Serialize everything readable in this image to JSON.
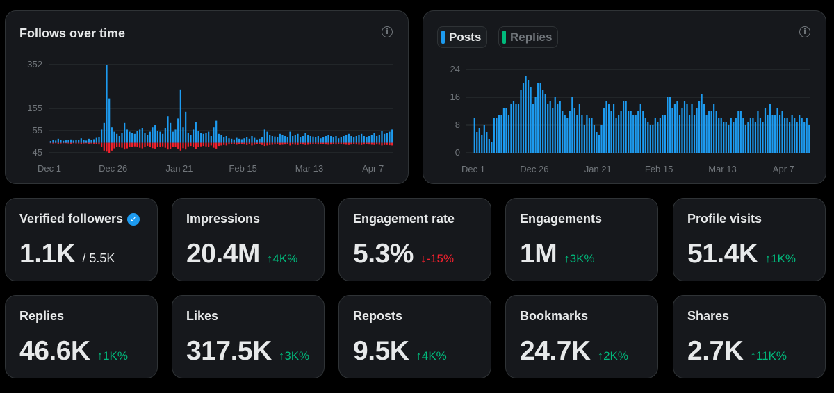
{
  "follows_chart": {
    "title": "Follows over time",
    "info_icon": "info-icon"
  },
  "posts_chart": {
    "tabs": [
      {
        "label": "Posts",
        "color": "#1d9bf0",
        "active": true
      },
      {
        "label": "Replies",
        "color": "#00ba7c",
        "active": false
      }
    ],
    "info_icon": "info-icon"
  },
  "chart_data": [
    {
      "type": "bar",
      "title": "Follows over time",
      "xlabel": "",
      "ylabel": "",
      "ytick_labels": [
        "352",
        "155",
        "55",
        "-45"
      ],
      "yticks": [
        352,
        155,
        55,
        -45
      ],
      "ylim": [
        -45,
        352
      ],
      "xtick_labels": [
        "Dec 1",
        "Dec 26",
        "Jan 21",
        "Feb 15",
        "Mar 13",
        "Apr 7"
      ],
      "xtick_index": [
        0,
        25,
        51,
        76,
        102,
        127
      ],
      "grid": true,
      "series": [
        {
          "color": "#1d9bf0",
          "values": [
            8,
            12,
            10,
            18,
            14,
            9,
            11,
            13,
            15,
            10,
            12,
            14,
            20,
            12,
            10,
            18,
            14,
            16,
            22,
            25,
            60,
            90,
            352,
            200,
            70,
            50,
            40,
            30,
            45,
            90,
            60,
            50,
            45,
            40,
            55,
            60,
            65,
            45,
            35,
            50,
            70,
            80,
            55,
            50,
            40,
            65,
            120,
            90,
            50,
            60,
            110,
            240,
            70,
            140,
            45,
            35,
            60,
            95,
            55,
            45,
            40,
            45,
            50,
            30,
            70,
            100,
            40,
            35,
            25,
            30,
            20,
            18,
            15,
            22,
            18,
            16,
            20,
            25,
            18,
            30,
            22,
            15,
            18,
            25,
            60,
            50,
            35,
            30,
            28,
            25,
            40,
            35,
            30,
            25,
            50,
            30,
            35,
            40,
            25,
            30,
            45,
            35,
            30,
            28,
            25,
            30,
            20,
            25,
            30,
            35,
            30,
            25,
            30,
            20,
            25,
            30,
            35,
            40,
            30,
            25,
            30,
            35,
            40,
            30,
            25,
            30,
            35,
            45,
            30,
            35,
            55,
            40,
            45,
            50,
            60
          ]
        },
        {
          "color": "#f4212e",
          "values": [
            -2,
            -3,
            -2,
            -4,
            -3,
            -2,
            -2,
            -3,
            -4,
            -2,
            -3,
            -3,
            -5,
            -3,
            -2,
            -4,
            -3,
            -4,
            -6,
            -8,
            -20,
            -35,
            -40,
            -45,
            -35,
            -25,
            -20,
            -18,
            -22,
            -30,
            -25,
            -20,
            -18,
            -16,
            -20,
            -22,
            -25,
            -18,
            -14,
            -20,
            -24,
            -26,
            -20,
            -18,
            -16,
            -22,
            -30,
            -28,
            -18,
            -20,
            -26,
            -35,
            -24,
            -30,
            -16,
            -14,
            -20,
            -28,
            -20,
            -16,
            -14,
            -16,
            -18,
            -12,
            -22,
            -26,
            -14,
            -12,
            -10,
            -12,
            -8,
            -7,
            -6,
            -9,
            -7,
            -6,
            -8,
            -10,
            -7,
            -12,
            -9,
            -6,
            -7,
            -10,
            -14,
            -12,
            -10,
            -9,
            -8,
            -7,
            -10,
            -9,
            -8,
            -7,
            -12,
            -8,
            -9,
            -10,
            -7,
            -8,
            -10,
            -9,
            -8,
            -7,
            -6,
            -8,
            -5,
            -6,
            -8,
            -9,
            -8,
            -6,
            -8,
            -5,
            -6,
            -8,
            -9,
            -10,
            -8,
            -6,
            -8,
            -9,
            -10,
            -8,
            -6,
            -8,
            -9,
            -10,
            -8,
            -9,
            -12,
            -10,
            -10,
            -11,
            -12
          ]
        }
      ]
    },
    {
      "type": "bar",
      "xlabel": "",
      "ylabel": "",
      "ytick_labels": [
        "24",
        "16",
        "8",
        "0"
      ],
      "yticks": [
        24,
        16,
        8,
        0
      ],
      "ylim": [
        0,
        24
      ],
      "xtick_labels": [
        "Dec 1",
        "Dec 26",
        "Jan 21",
        "Feb 15",
        "Mar 13",
        "Apr 7"
      ],
      "xtick_index": [
        0,
        25,
        51,
        76,
        102,
        127
      ],
      "grid": true,
      "series": [
        {
          "color": "#1d9bf0",
          "values": [
            10,
            6,
            7,
            5,
            8,
            6,
            4,
            3,
            10,
            10,
            11,
            11,
            13,
            13,
            11,
            14,
            15,
            14,
            14,
            18,
            20,
            22,
            21,
            19,
            14,
            16,
            20,
            20,
            18,
            17,
            14,
            15,
            13,
            16,
            14,
            15,
            12,
            11,
            10,
            12,
            16,
            13,
            11,
            14,
            11,
            8,
            11,
            10,
            10,
            8,
            6,
            5,
            8,
            13,
            15,
            14,
            12,
            14,
            10,
            11,
            12,
            15,
            15,
            12,
            12,
            11,
            11,
            12,
            14,
            12,
            10,
            9,
            8,
            8,
            10,
            9,
            10,
            11,
            11,
            16,
            16,
            13,
            14,
            15,
            11,
            13,
            15,
            14,
            11,
            14,
            11,
            13,
            15,
            17,
            14,
            11,
            12,
            12,
            14,
            12,
            10,
            10,
            9,
            9,
            8,
            10,
            9,
            10,
            12,
            12,
            10,
            8,
            9,
            10,
            10,
            9,
            12,
            10,
            9,
            13,
            11,
            14,
            11,
            11,
            13,
            11,
            12,
            10,
            10,
            9,
            11,
            10,
            9,
            11,
            10,
            9,
            10,
            8
          ]
        }
      ]
    }
  ],
  "metrics": [
    {
      "label": "Verified followers",
      "value": "1.1K",
      "sub": "/ 5.5K",
      "badge": true
    },
    {
      "label": "Impressions",
      "value": "20.4M",
      "change": "↑4K%",
      "direction": "up"
    },
    {
      "label": "Engagement rate",
      "value": "5.3%",
      "change": "↓-15%",
      "direction": "down"
    },
    {
      "label": "Engagements",
      "value": "1M",
      "change": "↑3K%",
      "direction": "up"
    },
    {
      "label": "Profile visits",
      "value": "51.4K",
      "change": "↑1K%",
      "direction": "up"
    },
    {
      "label": "Replies",
      "value": "46.6K",
      "change": "↑1K%",
      "direction": "up"
    },
    {
      "label": "Likes",
      "value": "317.5K",
      "change": "↑3K%",
      "direction": "up"
    },
    {
      "label": "Reposts",
      "value": "9.5K",
      "change": "↑4K%",
      "direction": "up"
    },
    {
      "label": "Bookmarks",
      "value": "24.7K",
      "change": "↑2K%",
      "direction": "up"
    },
    {
      "label": "Shares",
      "value": "2.7K",
      "change": "↑11K%",
      "direction": "up"
    }
  ],
  "colors": {
    "card_bg": "#16181c",
    "border": "#2f3336",
    "accent_blue": "#1d9bf0",
    "up_green": "#00ba7c",
    "down_red": "#f4212e",
    "grid": "#2f3336",
    "muted": "#71767b"
  }
}
